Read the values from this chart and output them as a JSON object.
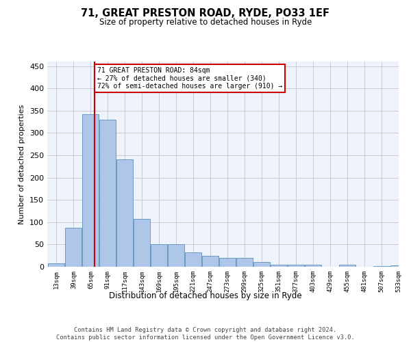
{
  "title": "71, GREAT PRESTON ROAD, RYDE, PO33 1EF",
  "subtitle": "Size of property relative to detached houses in Ryde",
  "xlabel": "Distribution of detached houses by size in Ryde",
  "ylabel": "Number of detached properties",
  "bar_color": "#aec6e8",
  "bar_edge_color": "#5a8fc0",
  "background_color": "#eef2fb",
  "grid_color": "#c8c8d8",
  "property_line_x": 84,
  "property_line_color": "#cc0000",
  "annotation_text": "71 GREAT PRESTON ROAD: 84sqm\n← 27% of detached houses are smaller (340)\n72% of semi-detached houses are larger (910) →",
  "annotation_box_color": "#ffffff",
  "annotation_box_edge_color": "#cc0000",
  "footer_text": "Contains HM Land Registry data © Crown copyright and database right 2024.\nContains public sector information licensed under the Open Government Licence v3.0.",
  "bin_edges": [
    13,
    39,
    65,
    91,
    117,
    143,
    169,
    195,
    221,
    247,
    273,
    299,
    325,
    351,
    377,
    403,
    429,
    455,
    481,
    507,
    533
  ],
  "bin_labels": [
    "13sqm",
    "39sqm",
    "65sqm",
    "91sqm",
    "117sqm",
    "143sqm",
    "169sqm",
    "195sqm",
    "221sqm",
    "247sqm",
    "273sqm",
    "299sqm",
    "325sqm",
    "351sqm",
    "377sqm",
    "403sqm",
    "429sqm",
    "455sqm",
    "481sqm",
    "507sqm",
    "533sqm"
  ],
  "counts": [
    7,
    88,
    342,
    330,
    241,
    108,
    50,
    50,
    32,
    25,
    20,
    20,
    10,
    5,
    5,
    5,
    0,
    4,
    0,
    2,
    3
  ],
  "ylim": [
    0,
    460
  ],
  "yticks": [
    0,
    50,
    100,
    150,
    200,
    250,
    300,
    350,
    400,
    450
  ]
}
